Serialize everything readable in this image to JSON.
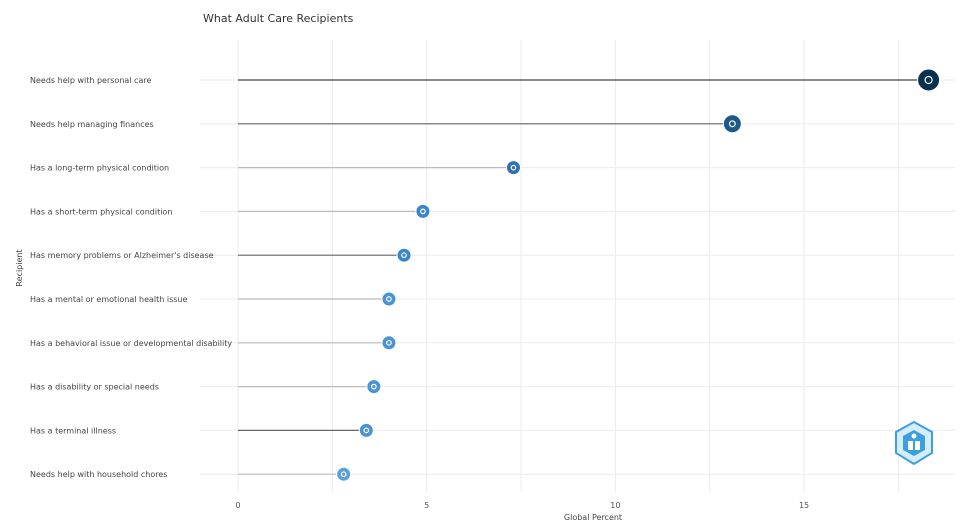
{
  "chart_data": {
    "type": "lollipop",
    "orientation": "horizontal",
    "title": "What Adult Care Recipients",
    "xlabel": "Global Percent",
    "ylabel": "Recipient",
    "xlim": [
      0,
      19
    ],
    "x_ticks": [
      0,
      5,
      10,
      15
    ],
    "x_tick_labels": [
      "0",
      "5",
      "10",
      "15"
    ],
    "grid": true,
    "categories": [
      "Needs help with personal care",
      "Needs help managing finances",
      "Has a long-term physical condition",
      "Has a short-term physical condition",
      "Has memory problems or Alzheimer's disease",
      "Has a mental or emotional health issue",
      "Has a behavioral issue or developmental disability",
      "Has a disability or special needs",
      "Has a terminal illness",
      "Needs help with household chores"
    ],
    "values": [
      18.3,
      13.1,
      7.3,
      4.9,
      4.4,
      4.0,
      4.0,
      3.6,
      3.4,
      2.8
    ],
    "colors": [
      "#0d2f4f",
      "#1d5a8a",
      "#2f6fb3",
      "#3a86cc",
      "#3a86cc",
      "#4a94d6",
      "#4a94d6",
      "#4a94d6",
      "#4a94d6",
      "#5aa1dd"
    ],
    "stem_colors": [
      "#444444",
      "#666666",
      "#bbbbbb",
      "#bbbbbb",
      "#666666",
      "#bbbbbb",
      "#bbbbbb",
      "#bbbbbb",
      "#666666",
      "#bbbbbb"
    ],
    "logo_icon": "shield-logo-icon"
  }
}
